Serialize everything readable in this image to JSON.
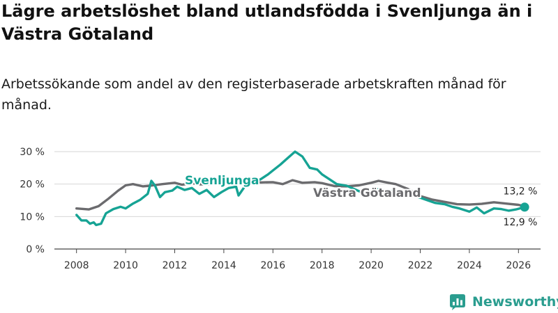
{
  "header": {
    "title": "Lägre arbetslöshet bland utlandsfödda i Svenljunga än i Västra Götaland",
    "subtitle": "Arbetssökande som andel av den registerbaserade arbetskraften månad för månad."
  },
  "brand": {
    "name": "Newsworthy",
    "icon": "newsworthy-logo-icon",
    "color": "#2a9d8f"
  },
  "chart_data": {
    "type": "line",
    "title": "Lägre arbetslöshet bland utlandsfödda i Svenljunga än i Västra Götaland",
    "subtitle": "Arbetssökande som andel av den registerbaserade arbetskraften månad för månad.",
    "xlabel": "",
    "ylabel": "",
    "xlim": [
      2007.1,
      2026.9
    ],
    "ylim": [
      0,
      30
    ],
    "x_ticks": [
      2008,
      2010,
      2012,
      2014,
      2016,
      2018,
      2020,
      2022,
      2024,
      2026
    ],
    "x_tick_labels": [
      "2008",
      "2010",
      "2012",
      "2014",
      "2016",
      "2018",
      "2020",
      "2022",
      "2024",
      "2026"
    ],
    "y_ticks": [
      0,
      10,
      20,
      30
    ],
    "y_tick_labels": [
      "0 %",
      "10 %",
      "20 %",
      "30 %"
    ],
    "grid": true,
    "series": [
      {
        "name": "Västra Götaland",
        "color": "#6b6b6e",
        "label_text": "Västra Götaland",
        "end_label": "13,2 %",
        "points": [
          [
            2008.0,
            12.5
          ],
          [
            2008.5,
            12.2
          ],
          [
            2008.9,
            13.2
          ],
          [
            2009.3,
            15.5
          ],
          [
            2009.7,
            18.0
          ],
          [
            2010.0,
            19.6
          ],
          [
            2010.3,
            20.0
          ],
          [
            2010.7,
            19.3
          ],
          [
            2011.0,
            19.5
          ],
          [
            2011.5,
            20.0
          ],
          [
            2012.0,
            20.4
          ],
          [
            2012.3,
            19.8
          ],
          [
            2012.7,
            20.3
          ],
          [
            2013.0,
            19.9
          ],
          [
            2013.5,
            20.0
          ],
          [
            2014.0,
            20.2
          ],
          [
            2014.5,
            21.0
          ],
          [
            2015.0,
            21.2
          ],
          [
            2015.5,
            20.5
          ],
          [
            2016.0,
            20.6
          ],
          [
            2016.4,
            20.0
          ],
          [
            2016.8,
            21.2
          ],
          [
            2017.2,
            20.4
          ],
          [
            2017.7,
            20.6
          ],
          [
            2018.0,
            20.3
          ],
          [
            2018.5,
            19.4
          ],
          [
            2019.0,
            19.3
          ],
          [
            2019.5,
            19.6
          ],
          [
            2020.0,
            20.4
          ],
          [
            2020.3,
            21.0
          ],
          [
            2020.7,
            20.4
          ],
          [
            2021.0,
            20.0
          ],
          [
            2021.5,
            18.5
          ],
          [
            2022.0,
            16.3
          ],
          [
            2022.5,
            15.2
          ],
          [
            2023.0,
            14.5
          ],
          [
            2023.5,
            13.8
          ],
          [
            2024.0,
            13.7
          ],
          [
            2024.5,
            13.9
          ],
          [
            2025.0,
            14.4
          ],
          [
            2025.5,
            14.0
          ],
          [
            2026.0,
            13.6
          ],
          [
            2026.25,
            13.2
          ]
        ]
      },
      {
        "name": "Svenljunga",
        "color": "#16a394",
        "label_text": "Svenljunga",
        "end_label": "12,9 %",
        "points": [
          [
            2008.0,
            10.5
          ],
          [
            2008.2,
            8.8
          ],
          [
            2008.4,
            8.8
          ],
          [
            2008.55,
            7.8
          ],
          [
            2008.7,
            8.2
          ],
          [
            2008.8,
            7.4
          ],
          [
            2009.0,
            7.8
          ],
          [
            2009.2,
            11.0
          ],
          [
            2009.5,
            12.3
          ],
          [
            2009.8,
            13.0
          ],
          [
            2010.0,
            12.5
          ],
          [
            2010.3,
            14.0
          ],
          [
            2010.6,
            15.2
          ],
          [
            2010.9,
            17.0
          ],
          [
            2011.05,
            21.0
          ],
          [
            2011.2,
            19.5
          ],
          [
            2011.4,
            16.0
          ],
          [
            2011.6,
            17.5
          ],
          [
            2011.9,
            18.0
          ],
          [
            2012.1,
            19.2
          ],
          [
            2012.4,
            18.2
          ],
          [
            2012.7,
            18.8
          ],
          [
            2013.0,
            17.0
          ],
          [
            2013.3,
            18.2
          ],
          [
            2013.6,
            16.0
          ],
          [
            2013.9,
            17.5
          ],
          [
            2014.2,
            18.8
          ],
          [
            2014.5,
            19.2
          ],
          [
            2014.6,
            16.5
          ],
          [
            2014.9,
            19.8
          ],
          [
            2015.2,
            20.5
          ],
          [
            2015.5,
            21.5
          ],
          [
            2015.8,
            23.0
          ],
          [
            2016.0,
            24.2
          ],
          [
            2016.3,
            26.0
          ],
          [
            2016.6,
            28.0
          ],
          [
            2016.9,
            30.0
          ],
          [
            2017.2,
            28.5
          ],
          [
            2017.5,
            25.0
          ],
          [
            2017.8,
            24.5
          ],
          [
            2018.0,
            23.0
          ],
          [
            2018.3,
            21.5
          ],
          [
            2018.6,
            20.0
          ],
          [
            2019.0,
            19.5
          ],
          [
            2019.3,
            18.5
          ],
          [
            2019.6,
            17.5
          ],
          [
            2020.0,
            17.0
          ],
          [
            2020.3,
            18.5
          ],
          [
            2020.7,
            17.8
          ],
          [
            2021.0,
            18.0
          ],
          [
            2021.3,
            17.0
          ],
          [
            2021.6,
            16.8
          ],
          [
            2022.0,
            15.8
          ],
          [
            2022.3,
            15.0
          ],
          [
            2022.6,
            14.2
          ],
          [
            2023.0,
            13.8
          ],
          [
            2023.3,
            13.0
          ],
          [
            2023.6,
            12.5
          ],
          [
            2024.0,
            11.5
          ],
          [
            2024.3,
            12.8
          ],
          [
            2024.6,
            11.0
          ],
          [
            2025.0,
            12.5
          ],
          [
            2025.3,
            12.3
          ],
          [
            2025.6,
            11.8
          ],
          [
            2025.9,
            12.2
          ],
          [
            2026.25,
            12.9
          ]
        ]
      }
    ]
  }
}
